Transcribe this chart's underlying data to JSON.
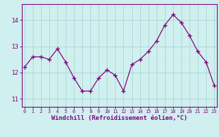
{
  "x": [
    0,
    1,
    2,
    3,
    4,
    5,
    6,
    7,
    8,
    9,
    10,
    11,
    12,
    13,
    14,
    15,
    16,
    17,
    18,
    19,
    20,
    21,
    22,
    23
  ],
  "y": [
    12.2,
    12.6,
    12.6,
    12.5,
    12.9,
    12.4,
    11.8,
    11.3,
    11.3,
    11.8,
    12.1,
    11.9,
    11.3,
    12.3,
    12.5,
    12.8,
    13.2,
    13.8,
    14.2,
    13.9,
    13.4,
    12.8,
    12.4,
    11.5
  ],
  "line_color": "#800080",
  "marker_color": "#800080",
  "bg_color": "#cff0ee",
  "grid_color": "#b0d8d8",
  "xlabel": "Windchill (Refroidissement éolien,°C)",
  "xlabel_color": "#800080",
  "tick_color": "#800080",
  "axis_color": "#800080",
  "yticks": [
    11,
    12,
    13,
    14
  ],
  "xticks": [
    0,
    1,
    2,
    3,
    4,
    5,
    6,
    7,
    8,
    9,
    10,
    11,
    12,
    13,
    14,
    15,
    16,
    17,
    18,
    19,
    20,
    21,
    22,
    23
  ],
  "ylim": [
    10.7,
    14.6
  ],
  "xlim": [
    -0.3,
    23.3
  ]
}
